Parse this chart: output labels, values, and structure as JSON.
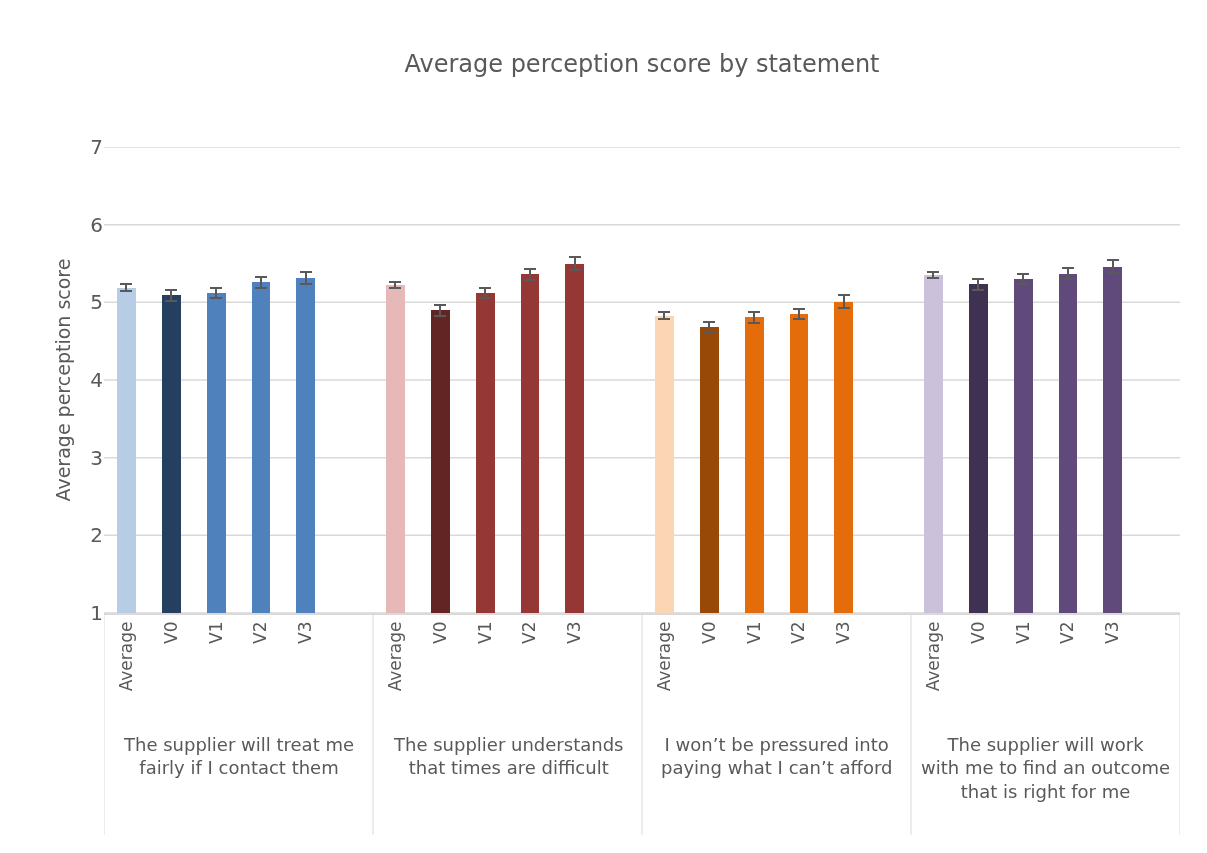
{
  "chart_data": {
    "type": "bar",
    "title": "Average perception score by statement",
    "ylabel": "Average perception score",
    "categories": [
      "Average",
      "V0",
      "V1",
      "V2",
      "V3",
      null,
      "Average",
      "V0",
      "V1",
      "V2",
      "V3",
      null,
      "Average",
      "V0",
      "V1",
      "V2",
      "V3",
      null,
      "Average",
      "V0",
      "V1",
      "V2",
      "V3",
      null
    ],
    "values": [
      5.19,
      5.09,
      5.12,
      5.26,
      5.31,
      null,
      5.22,
      4.9,
      5.12,
      5.36,
      5.5,
      null,
      4.83,
      4.68,
      4.81,
      4.85,
      5.01,
      null,
      5.35,
      5.23,
      5.3,
      5.37,
      5.46,
      null
    ],
    "errors": [
      0.04,
      0.07,
      0.07,
      0.07,
      0.08,
      null,
      0.04,
      0.07,
      0.07,
      0.07,
      0.08,
      null,
      0.04,
      0.07,
      0.07,
      0.07,
      0.08,
      null,
      0.04,
      0.07,
      0.07,
      0.07,
      0.08,
      null
    ],
    "colors": [
      "#b7cde6",
      "#243f5f",
      "#4f81bd",
      "#4f81bd",
      "#4f81bd",
      "#ffffff",
      "#e6b8b7",
      "#632523",
      "#953735",
      "#953735",
      "#953735",
      "#ffffff",
      "#fcd5b5",
      "#984807",
      "#e46c0a",
      "#e46c0a",
      "#e46c0a",
      "#ffffff",
      "#ccc1da",
      "#3f3151",
      "#604a7b",
      "#604a7b",
      "#604a7b",
      "#ffffff"
    ],
    "annotations": [
      "The supplier will treat me fairly if I contact them",
      "The supplier understands that times are difficult",
      "I won’t be pressured into paying what I can’t afford",
      "The supplier will work with me to find an outcome that is right for me"
    ],
    "ylim": [
      1,
      7
    ],
    "yticks": [
      1,
      2,
      3,
      4,
      5,
      6,
      7
    ],
    "grid": "y"
  }
}
